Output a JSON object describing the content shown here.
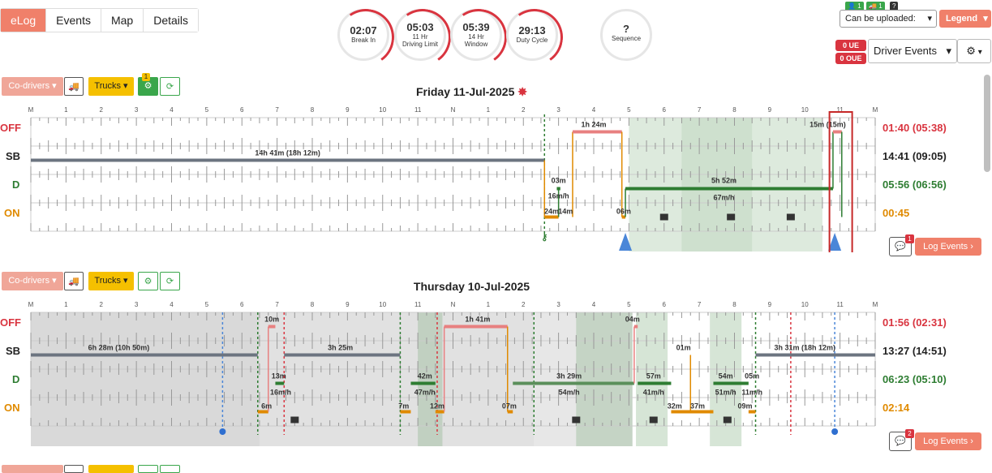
{
  "nav": {
    "tabs": [
      "eLog",
      "Events",
      "Map",
      "Details"
    ]
  },
  "gauges": [
    {
      "value": "02:07",
      "label1": "Break In",
      "label2": ""
    },
    {
      "value": "05:03",
      "label1": "11 Hr",
      "label2": "Driving Limit"
    },
    {
      "value": "05:39",
      "label1": "14 Hr",
      "label2": "Window"
    },
    {
      "value": "29:13",
      "label1": "Duty Cycle",
      "label2": ""
    }
  ],
  "sequence": {
    "value": "?",
    "label": "Sequence"
  },
  "header_right": {
    "badge1": "1",
    "badge2": "1",
    "badge3": "?",
    "upload_select": "Can be uploaded:",
    "legend": "Legend",
    "ue": "0 UE",
    "oue": "0 OUE",
    "driver_select": "Driver Events"
  },
  "toolbar": {
    "codrivers": "Co-drivers",
    "trucks": "Trucks",
    "notif": "1"
  },
  "hours": [
    "M",
    "1",
    "2",
    "3",
    "4",
    "5",
    "6",
    "7",
    "8",
    "9",
    "10",
    "11",
    "N",
    "1",
    "2",
    "3",
    "4",
    "5",
    "6",
    "7",
    "8",
    "9",
    "10",
    "11",
    "M"
  ],
  "row_labels": [
    "OFF",
    "SB",
    "D",
    "ON"
  ],
  "days": [
    {
      "title": "Friday 11-Jul-2025",
      "totals": [
        "01:40 (05:38)",
        "14:41 (09:05)",
        "05:56 (06:56)",
        "00:45"
      ],
      "chat_count": "1",
      "log_events": "Log Events",
      "labels": [
        "14h 41m (18h 12m)",
        "1h 24m",
        "5h 52m",
        "67m/h",
        "03m",
        "16m/h",
        "24m",
        "14m",
        "06m",
        "15m (15m)"
      ]
    },
    {
      "title": "Thursday 10-Jul-2025",
      "totals": [
        "01:56 (02:31)",
        "13:27 (14:51)",
        "06:23 (05:10)",
        "02:14"
      ],
      "chat_count": "2",
      "log_events": "Log Events",
      "labels": [
        "6h 28m (10h 50m)",
        "3h 25m",
        "10m",
        "13m",
        "16m/h",
        "6m",
        "42m",
        "47m/h",
        "7m",
        "12m",
        "1h 41m",
        "07m",
        "3h 29m",
        "54m/h",
        "04m",
        "57m",
        "41m/h",
        "01m",
        "32m",
        "37m",
        "54m",
        "51m/h",
        "05m",
        "11m/h",
        "09m",
        "3h 31m (18h 12m)"
      ]
    }
  ],
  "colors": {
    "off": "#d9343f",
    "sb": "#333333",
    "d": "#2e7d32",
    "on": "#e08a00",
    "accent": "#f0806a"
  }
}
